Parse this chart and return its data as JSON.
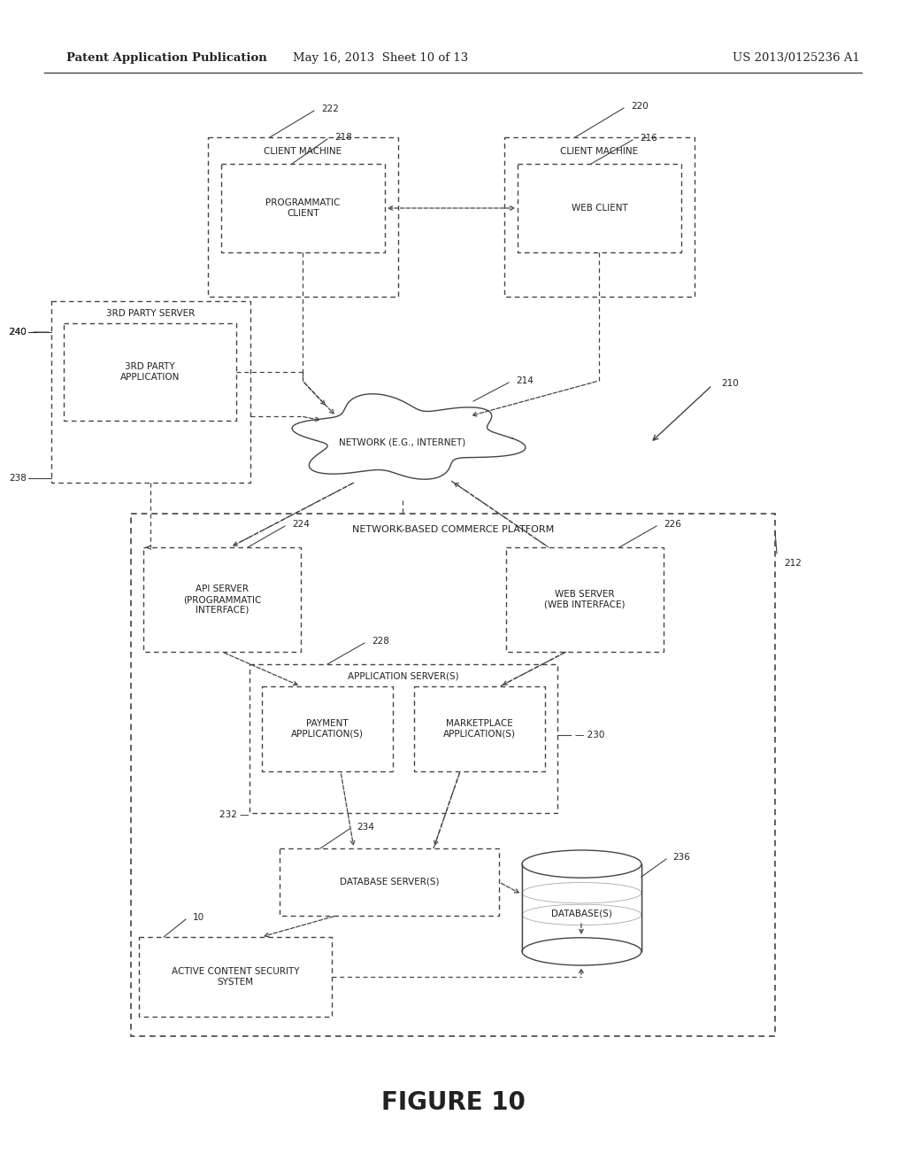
{
  "header_left": "Patent Application Publication",
  "header_mid": "May 16, 2013  Sheet 10 of 13",
  "header_right": "US 2013/0125236 A1",
  "figure_label": "FIGURE 10",
  "bg_color": "#ffffff",
  "fig_w": 10.24,
  "fig_h": 13.2,
  "dpi": 100
}
